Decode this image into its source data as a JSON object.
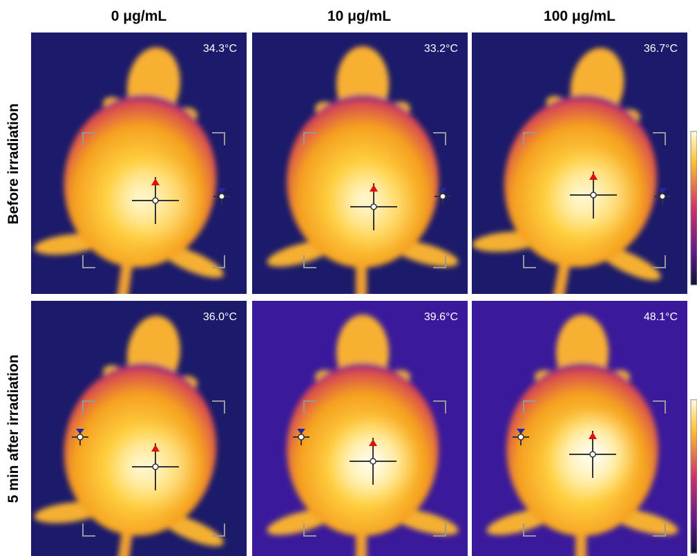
{
  "columns": [
    "0 μg/mL",
    "10 μg/mL",
    "100 μg/mL"
  ],
  "rows": [
    "Before irradiation",
    "5 min after irradiation"
  ],
  "temperatures": [
    [
      "34.3°C",
      "33.2°C",
      "36.7°C"
    ],
    [
      "36.0°C",
      "39.6°C",
      "48.1°C"
    ]
  ]
}
